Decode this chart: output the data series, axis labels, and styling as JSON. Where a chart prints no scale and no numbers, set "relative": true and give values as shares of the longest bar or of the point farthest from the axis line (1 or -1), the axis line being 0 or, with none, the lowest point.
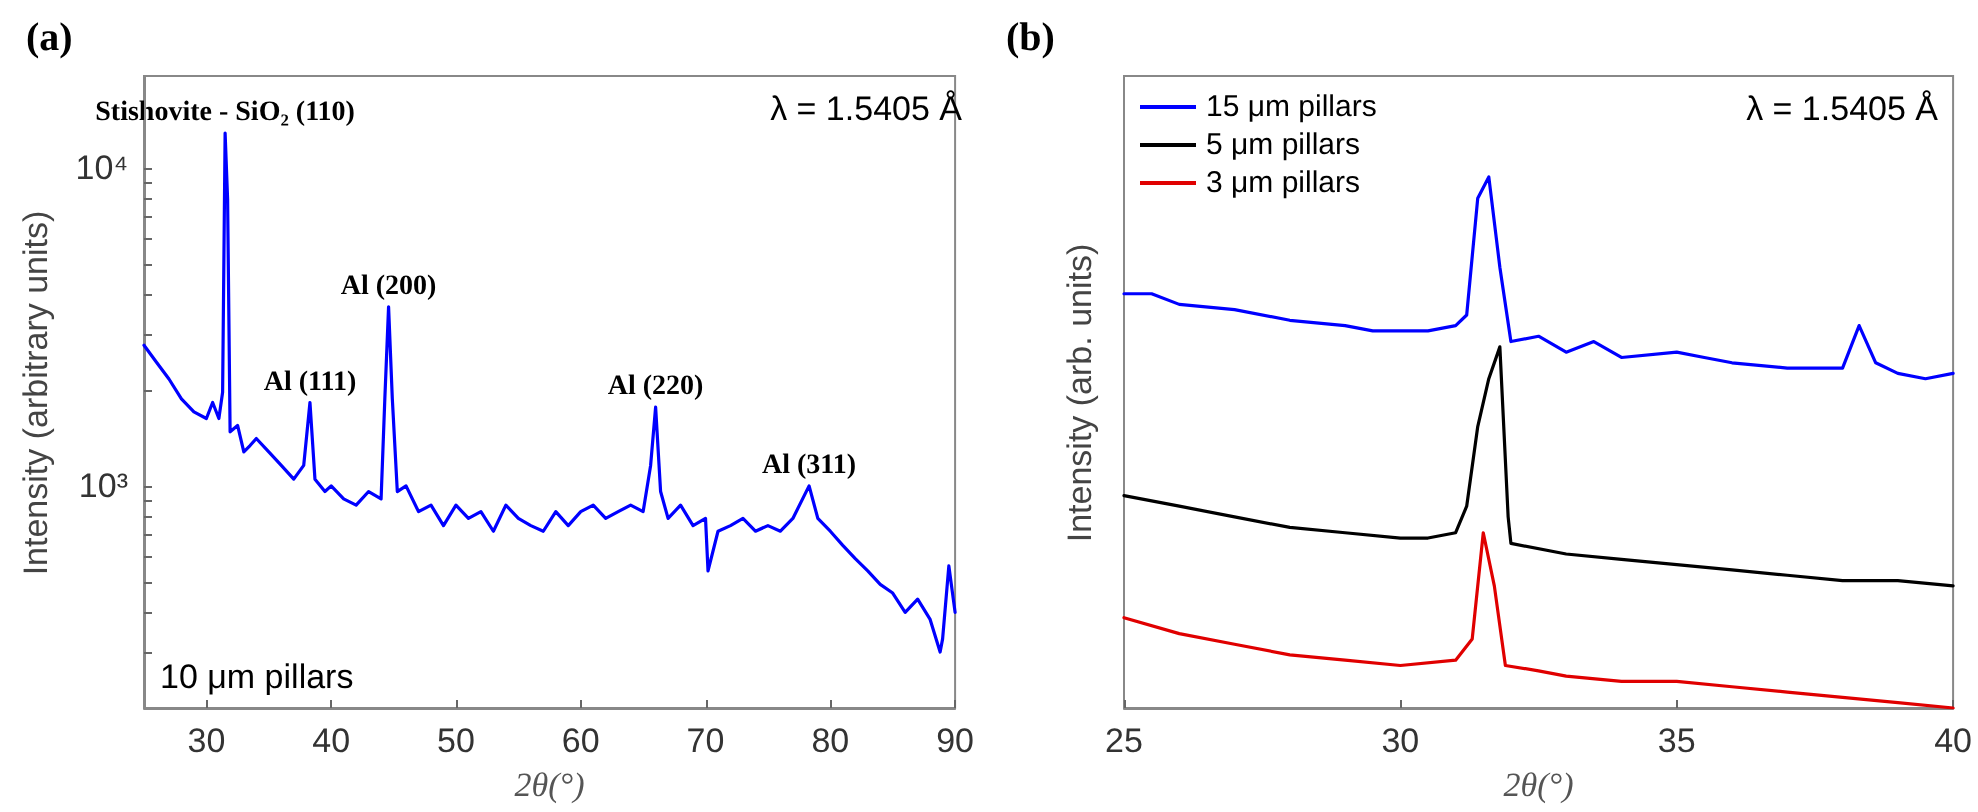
{
  "chart_data": [
    {
      "type": "line",
      "title": "(a)",
      "xlabel": "2θ(°)",
      "ylabel": "Intensity (arbitrary units)",
      "log": true,
      "marker": "none",
      "line_style": "solid",
      "legend": false,
      "annotations": [
        {
          "text": "Stishovite - SiO₂ (110)",
          "x": 31.5,
          "y": 12900
        },
        {
          "text": "Al (111)",
          "x": 38.3,
          "y": 1830
        },
        {
          "text": "Al (200)",
          "x": 44.6,
          "y": 3660
        },
        {
          "text": "Al (220)",
          "x": 66,
          "y": 1770
        },
        {
          "text": "Al (311)",
          "x": 78.3,
          "y": 1000
        },
        "λ = 1.5405 Å",
        "10 μm pillars"
      ],
      "xlim": [
        25,
        90
      ],
      "xticks": [
        30,
        40,
        50,
        60,
        70,
        80,
        90
      ],
      "ylim": [
        200,
        19500
      ],
      "yticks": [
        {
          "value": 300,
          "label": null
        },
        {
          "value": 400,
          "label": null
        },
        {
          "value": 500,
          "label": null
        },
        {
          "value": 600,
          "label": null
        },
        {
          "value": 700,
          "label": null
        },
        {
          "value": 800,
          "label": null
        },
        {
          "value": 900,
          "label": null
        },
        {
          "value": 1000,
          "label": "10³"
        },
        {
          "value": 2000,
          "label": null
        },
        {
          "value": 3000,
          "label": null
        },
        {
          "value": 4000,
          "label": null
        },
        {
          "value": 5000,
          "label": null
        },
        {
          "value": 6000,
          "label": null
        },
        {
          "value": 7000,
          "label": null
        },
        {
          "value": 8000,
          "label": null
        },
        {
          "value": 9000,
          "label": null
        },
        {
          "value": 10000,
          "label": "10⁴"
        }
      ],
      "series": [
        {
          "color": "#0000ff",
          "x": [
            25,
            26,
            27,
            28,
            29,
            30,
            30.5,
            31,
            31.3,
            31.5,
            31.7,
            31.9,
            32.5,
            33,
            33.5,
            34,
            35,
            36,
            37,
            37.8,
            38.3,
            38.7,
            39.5,
            40,
            41,
            42,
            43,
            44,
            44.3,
            44.6,
            44.9,
            45.3,
            46,
            47,
            48,
            49,
            50,
            51,
            52,
            53,
            54,
            55,
            56,
            57,
            58,
            59,
            60,
            61,
            62,
            63,
            64,
            65,
            65.6,
            66,
            66.4,
            67,
            68,
            69,
            70,
            70.2,
            71,
            72,
            73,
            74,
            75,
            76,
            77,
            78.3,
            79,
            80,
            81,
            82,
            83,
            84,
            85,
            86,
            87,
            88,
            88.8,
            89,
            89.5,
            90
          ],
          "values": [
            2770,
            2450,
            2170,
            1880,
            1710,
            1630,
            1830,
            1630,
            1970,
            12900,
            7990,
            1480,
            1550,
            1280,
            1340,
            1410,
            1280,
            1160,
            1050,
            1160,
            1830,
            1050,
            960,
            1000,
            910,
            870,
            960,
            910,
            1880,
            3660,
            1880,
            960,
            1000,
            830,
            870,
            750,
            870,
            790,
            830,
            720,
            870,
            790,
            750,
            720,
            830,
            750,
            830,
            870,
            790,
            830,
            870,
            830,
            1160,
            1770,
            960,
            790,
            870,
            750,
            790,
            540,
            720,
            750,
            790,
            720,
            750,
            720,
            790,
            1000,
            790,
            720,
            650,
            590,
            540,
            490,
            460,
            400,
            440,
            380,
            300,
            330,
            560,
            400
          ]
        }
      ]
    },
    {
      "type": "line",
      "title": "(b)",
      "xlabel": "2θ(°)",
      "ylabel": "Intensity (arb. units)",
      "relative": true,
      "marker": "none",
      "line_style": "solid",
      "legend": "top left",
      "annotations": [
        "λ = 1.5405 Å"
      ],
      "xlim": [
        25,
        40
      ],
      "xticks": [
        25,
        30,
        35,
        40
      ],
      "series": [
        {
          "name": "15 μm pillars",
          "color": "#0000ff",
          "x": [
            25,
            25.5,
            26,
            27,
            28,
            29,
            29.5,
            30,
            30.5,
            31,
            31.2,
            31.4,
            31.6,
            31.8,
            32,
            32.5,
            33,
            33.5,
            34,
            35,
            35.5,
            36,
            37,
            38,
            38.3,
            38.6,
            39,
            39.5,
            40
          ],
          "values": [
            0.78,
            0.78,
            0.76,
            0.75,
            0.73,
            0.72,
            0.71,
            0.71,
            0.71,
            0.72,
            0.74,
            0.96,
            1.0,
            0.83,
            0.69,
            0.7,
            0.67,
            0.69,
            0.66,
            0.67,
            0.66,
            0.65,
            0.64,
            0.64,
            0.72,
            0.65,
            0.63,
            0.62,
            0.63
          ]
        },
        {
          "name": "5 μm pillars",
          "color": "#000000",
          "x": [
            25,
            26,
            27,
            28,
            29,
            30,
            30.5,
            31,
            31.2,
            31.4,
            31.6,
            31.8,
            31.95,
            32,
            33,
            34,
            35,
            36,
            37,
            38,
            39,
            40
          ],
          "values": [
            0.4,
            0.38,
            0.36,
            0.34,
            0.33,
            0.32,
            0.32,
            0.33,
            0.38,
            0.53,
            0.62,
            0.68,
            0.36,
            0.31,
            0.29,
            0.28,
            0.27,
            0.26,
            0.25,
            0.24,
            0.24,
            0.23
          ]
        },
        {
          "name": "3 μm pillars",
          "color": "#e00000",
          "x": [
            25,
            26,
            27,
            28,
            29,
            30,
            31,
            31.3,
            31.5,
            31.7,
            31.9,
            32.5,
            33,
            34,
            35,
            36,
            37,
            38,
            39,
            40
          ],
          "values": [
            0.17,
            0.14,
            0.12,
            0.1,
            0.09,
            0.08,
            0.09,
            0.13,
            0.33,
            0.23,
            0.08,
            0.07,
            0.06,
            0.05,
            0.05,
            0.04,
            0.03,
            0.02,
            0.01,
            0.0
          ]
        }
      ]
    }
  ]
}
